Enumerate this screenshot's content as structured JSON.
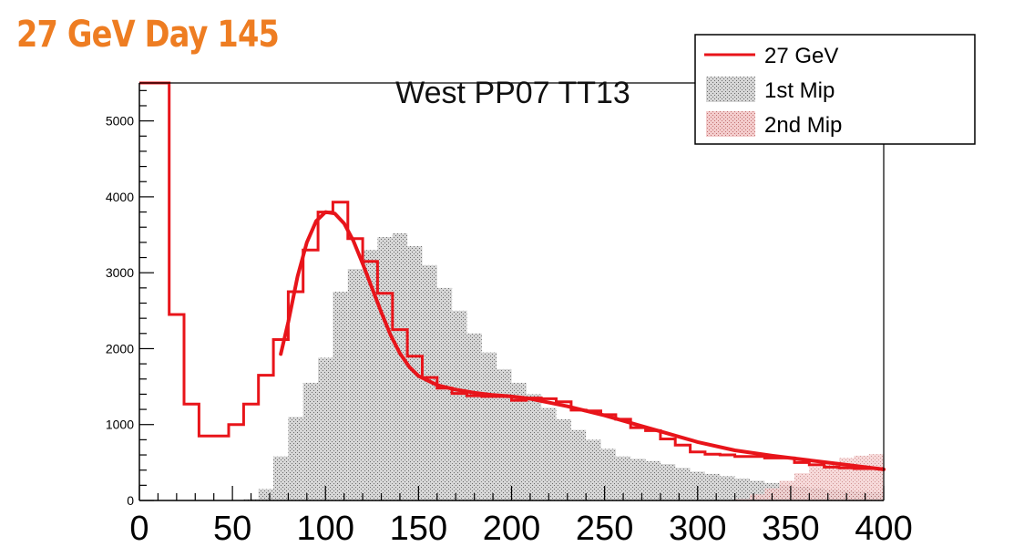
{
  "slide": {
    "title": "27 GeV Day 145"
  },
  "colors": {
    "title": "#ee7d22",
    "data_line": "#e8141a",
    "mip1_fill": "#b8b8b8",
    "mip2_fill": "#eab3b3",
    "axis": "#000000"
  },
  "chart_data": {
    "type": "bar",
    "title": "West PP07 TT13",
    "xlabel": "",
    "ylabel": "",
    "xlim": [
      0,
      400
    ],
    "ylim": [
      0,
      5500
    ],
    "x_ticks": [
      0,
      50,
      100,
      150,
      200,
      250,
      300,
      350,
      400
    ],
    "y_ticks": [
      0,
      1000,
      2000,
      3000,
      4000,
      5000
    ],
    "bin_width": 8,
    "bin_edges_start": 0,
    "legend_position": "top-right",
    "legend": [
      {
        "label": "27 GeV",
        "marker": "line"
      },
      {
        "label": "1st Mip",
        "marker": "fill"
      },
      {
        "label": "2nd Mip",
        "marker": "fill"
      }
    ],
    "series": [
      {
        "name": "27 GeV",
        "style": "step",
        "values": [
          5500,
          5500,
          2450,
          1270,
          850,
          850,
          1000,
          1270,
          1650,
          2120,
          2750,
          3300,
          3800,
          3930,
          3450,
          3150,
          2730,
          2250,
          1900,
          1620,
          1480,
          1410,
          1380,
          1370,
          1370,
          1320,
          1350,
          1340,
          1300,
          1190,
          1180,
          1130,
          1070,
          960,
          920,
          810,
          730,
          640,
          610,
          600,
          580,
          580,
          560,
          560,
          500,
          470,
          440,
          430,
          420,
          420
        ]
      },
      {
        "name": "1st Mip",
        "style": "filled",
        "values": [
          0,
          0,
          0,
          0,
          0,
          0,
          0,
          20,
          150,
          580,
          1100,
          1550,
          1880,
          2750,
          3050,
          3300,
          3470,
          3520,
          3350,
          3100,
          2800,
          2500,
          2200,
          1950,
          1730,
          1550,
          1400,
          1220,
          1070,
          930,
          800,
          680,
          580,
          550,
          520,
          480,
          430,
          380,
          350,
          320,
          290,
          260,
          230,
          200,
          180,
          160,
          140,
          130,
          120,
          110
        ]
      },
      {
        "name": "2nd Mip",
        "style": "filled",
        "values": [
          0,
          0,
          0,
          0,
          0,
          0,
          0,
          0,
          0,
          0,
          0,
          0,
          0,
          0,
          0,
          0,
          0,
          0,
          0,
          0,
          0,
          0,
          0,
          0,
          0,
          0,
          0,
          0,
          0,
          0,
          0,
          0,
          0,
          0,
          0,
          0,
          0,
          0,
          0,
          0,
          20,
          80,
          160,
          260,
          360,
          440,
          510,
          560,
          590,
          610
        ]
      },
      {
        "name": "fit",
        "style": "line",
        "x": [
          76,
          80,
          85,
          90,
          95,
          100,
          105,
          110,
          115,
          120,
          125,
          130,
          135,
          140,
          145,
          150,
          160,
          170,
          180,
          190,
          200,
          210,
          220,
          230,
          240,
          250,
          260,
          270,
          280,
          290,
          300,
          320,
          340,
          360,
          380,
          400
        ],
        "y": [
          1930,
          2350,
          2950,
          3400,
          3680,
          3800,
          3780,
          3650,
          3420,
          3120,
          2800,
          2480,
          2180,
          1940,
          1760,
          1640,
          1520,
          1460,
          1420,
          1390,
          1370,
          1340,
          1290,
          1240,
          1180,
          1120,
          1050,
          980,
          910,
          840,
          770,
          660,
          590,
          530,
          470,
          410
        ]
      }
    ]
  }
}
